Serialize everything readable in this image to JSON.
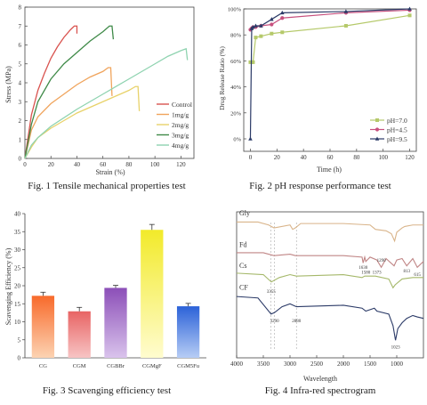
{
  "chart_data": [
    {
      "type": "line",
      "caption": "Fig. 1 Tensile mechanical properties test",
      "xlabel": "Strain (%)",
      "ylabel": "Stress (MPa)",
      "xlim": [
        0,
        130
      ],
      "ylim": [
        0,
        8
      ],
      "xticks": [
        0,
        20,
        40,
        60,
        80,
        100,
        120
      ],
      "yticks": [
        0,
        1,
        2,
        3,
        4,
        5,
        6,
        7,
        8
      ],
      "legend_position": "right",
      "series": [
        {
          "name": "Control",
          "color": "#d9534f",
          "x": [
            0,
            5,
            10,
            15,
            20,
            25,
            30,
            35,
            38,
            40,
            40
          ],
          "y": [
            0,
            2.3,
            3.6,
            4.5,
            5.3,
            5.9,
            6.4,
            6.8,
            7.0,
            7.0,
            6.6
          ]
        },
        {
          "name": "1mg/g",
          "color": "#f0a45c",
          "x": [
            0,
            5,
            10,
            20,
            30,
            40,
            50,
            60,
            64,
            66,
            67
          ],
          "y": [
            0,
            1.5,
            2.2,
            2.9,
            3.4,
            3.9,
            4.3,
            4.6,
            4.8,
            4.8,
            3.3
          ]
        },
        {
          "name": "2mg/g",
          "color": "#e8d26a",
          "x": [
            0,
            5,
            10,
            20,
            30,
            40,
            50,
            60,
            70,
            80,
            85,
            87,
            88
          ],
          "y": [
            0,
            0.6,
            1.1,
            1.6,
            2.0,
            2.4,
            2.7,
            3.0,
            3.3,
            3.6,
            3.8,
            3.8,
            2.5
          ]
        },
        {
          "name": "3mg/g",
          "color": "#3f8a48",
          "x": [
            0,
            5,
            10,
            20,
            30,
            40,
            50,
            60,
            65,
            67,
            68
          ],
          "y": [
            0,
            1.8,
            3.0,
            4.2,
            5.0,
            5.6,
            6.2,
            6.7,
            7.0,
            7.0,
            6.3
          ]
        },
        {
          "name": "4mg/g",
          "color": "#8fd3b0",
          "x": [
            0,
            5,
            10,
            20,
            40,
            60,
            80,
            100,
            110,
            120,
            124,
            125
          ],
          "y": [
            0,
            0.7,
            1.1,
            1.7,
            2.6,
            3.4,
            4.2,
            5.0,
            5.4,
            5.7,
            5.8,
            5.2
          ]
        }
      ]
    },
    {
      "type": "line",
      "caption": "Fig. 2 pH response performance test",
      "xlabel": "Time (h)",
      "ylabel": "Drug Release Ratio (%)",
      "xlim": [
        -5,
        125
      ],
      "ylim": [
        0,
        100
      ],
      "xticks": [
        0,
        20,
        40,
        60,
        80,
        100,
        120
      ],
      "yticks": [
        0,
        20,
        40,
        60,
        80,
        100
      ],
      "ytick_suffix": "%",
      "legend_position": "bottom-right",
      "series": [
        {
          "name": "pH=7.0",
          "color": "#b5c96a",
          "marker": "square",
          "x": [
            0,
            1,
            2,
            4,
            8,
            16,
            24,
            72,
            120
          ],
          "y": [
            59,
            59,
            59,
            78,
            79,
            81,
            82,
            87,
            95
          ]
        },
        {
          "name": "pH=4.5",
          "color": "#c7507e",
          "marker": "circle",
          "x": [
            0,
            1,
            2,
            4,
            8,
            16,
            24,
            72,
            120
          ],
          "y": [
            84,
            85,
            86,
            86,
            87,
            88,
            93,
            97,
            99
          ]
        },
        {
          "name": "pH=9.5",
          "color": "#2b3a67",
          "marker": "triangle",
          "x": [
            0,
            1,
            2,
            4,
            8,
            16,
            24,
            72,
            120
          ],
          "y": [
            0,
            85,
            86,
            87,
            87,
            92,
            97,
            98,
            100
          ]
        }
      ]
    },
    {
      "type": "bar",
      "caption": "Fig. 3 Scavenging efficiency test",
      "ylabel": "Scavenging Efficiency (%)",
      "ylim": [
        0,
        40
      ],
      "yticks": [
        0,
        5,
        10,
        15,
        20,
        25,
        30,
        35,
        40
      ],
      "categories": [
        "CG",
        "CGM",
        "CGBBr",
        "CGMgF",
        "CGM5Fu"
      ],
      "values": [
        17.2,
        12.9,
        19.4,
        35.5,
        14.3
      ],
      "errors": [
        1.0,
        1.1,
        0.7,
        1.5,
        0.8
      ],
      "colors": [
        [
          "#f86a2b",
          "#fcd3b3"
        ],
        [
          "#e86464",
          "#f7c4c4"
        ],
        [
          "#8c4fb8",
          "#d9c3ec"
        ],
        [
          "#f2ea2a",
          "#fffccf"
        ],
        [
          "#2c62d8",
          "#b7cdf5"
        ]
      ]
    },
    {
      "type": "line",
      "caption": "Fig. 4 Infra-red spectrogram",
      "xlabel": "Wavelength",
      "xlim": [
        4000,
        500
      ],
      "xticks": [
        4000,
        3500,
        3000,
        2500,
        2000,
        1500,
        1000
      ],
      "series_labels": [
        "Gly",
        "Fd",
        "Cs",
        "CF"
      ],
      "annotations": [
        "1630",
        "1580",
        "1373",
        "1290",
        "813",
        "615",
        "3355",
        "3290",
        "2880",
        "1023"
      ],
      "series": [
        {
          "name": "Gly",
          "color": "#d9b48a",
          "x": [
            4000,
            3600,
            3400,
            3300,
            3000,
            2950,
            2900,
            2800,
            2000,
            1500,
            1400,
            1200,
            1100,
            1040,
            1000,
            900,
            850,
            700,
            500
          ],
          "y": [
            0.93,
            0.93,
            0.91,
            0.89,
            0.91,
            0.88,
            0.89,
            0.92,
            0.92,
            0.91,
            0.88,
            0.87,
            0.85,
            0.8,
            0.86,
            0.89,
            0.9,
            0.91,
            0.91
          ]
        },
        {
          "name": "Fd",
          "color": "#c08585",
          "x": [
            4000,
            3500,
            3300,
            3000,
            2900,
            2000,
            1650,
            1630,
            1600,
            1580,
            1500,
            1373,
            1290,
            1200,
            1050,
            1000,
            900,
            813,
            700,
            615,
            500
          ],
          "y": [
            0.72,
            0.72,
            0.7,
            0.71,
            0.7,
            0.7,
            0.69,
            0.65,
            0.69,
            0.66,
            0.69,
            0.67,
            0.62,
            0.68,
            0.63,
            0.67,
            0.68,
            0.63,
            0.68,
            0.62,
            0.66
          ]
        },
        {
          "name": "Cs",
          "color": "#a5b86a",
          "x": [
            4000,
            3500,
            3350,
            3200,
            3000,
            2880,
            2000,
            1650,
            1600,
            1400,
            1150,
            1070,
            1030,
            900,
            700,
            500
          ],
          "y": [
            0.58,
            0.57,
            0.52,
            0.55,
            0.57,
            0.56,
            0.57,
            0.55,
            0.56,
            0.56,
            0.54,
            0.48,
            0.5,
            0.54,
            0.55,
            0.55
          ]
        },
        {
          "name": "CF",
          "color": "#2b3a67",
          "x": [
            4000,
            3600,
            3355,
            3290,
            3150,
            3000,
            2880,
            2000,
            1650,
            1580,
            1420,
            1373,
            1150,
            1070,
            1023,
            980,
            900,
            813,
            700,
            615,
            500
          ],
          "y": [
            0.42,
            0.41,
            0.3,
            0.31,
            0.35,
            0.37,
            0.35,
            0.36,
            0.34,
            0.32,
            0.34,
            0.32,
            0.3,
            0.22,
            0.12,
            0.2,
            0.24,
            0.27,
            0.29,
            0.28,
            0.27
          ]
        }
      ]
    }
  ]
}
